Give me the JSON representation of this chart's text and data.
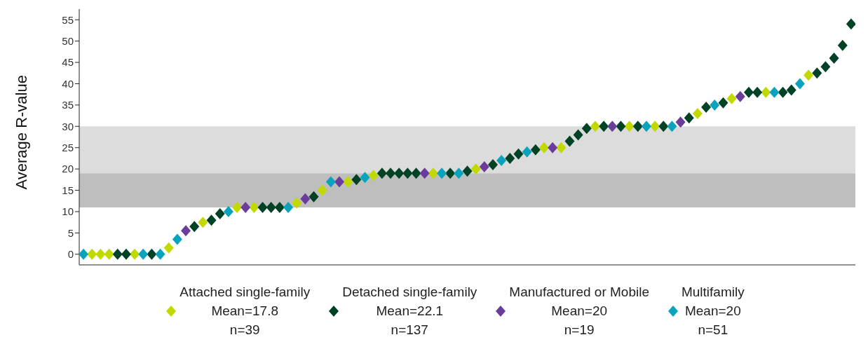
{
  "chart_data": {
    "type": "scatter",
    "ylabel": "Average R-value",
    "categories": [
      null,
      null,
      null,
      null,
      null,
      null,
      null,
      null,
      null,
      null,
      null,
      null,
      null,
      null,
      null,
      null,
      null,
      null,
      null,
      null,
      null,
      null,
      null,
      null,
      null,
      null,
      null,
      null,
      null,
      null,
      null,
      null,
      null,
      null,
      null,
      null,
      null,
      null,
      null,
      null,
      null,
      null,
      null,
      null,
      null,
      null,
      null,
      null,
      null,
      null,
      null,
      null,
      null,
      null,
      null,
      null,
      null,
      null,
      null,
      null,
      null,
      null,
      null,
      null,
      null,
      null,
      null,
      null,
      null,
      null,
      null,
      null,
      null,
      null,
      null,
      null,
      null,
      null,
      null,
      null,
      null,
      null,
      null,
      null,
      null,
      null,
      null,
      null,
      null,
      null,
      null
    ],
    "series": [
      {
        "name": "Attached single-family\nMean=17.8\nn=39",
        "color": "#c2d900",
        "values": [
          null,
          0,
          0,
          0,
          null,
          null,
          0,
          null,
          null,
          null,
          1.5,
          null,
          null,
          null,
          7.5,
          null,
          null,
          null,
          11,
          null,
          11,
          null,
          null,
          null,
          null,
          12,
          null,
          null,
          15,
          null,
          null,
          17,
          null,
          null,
          18.5,
          null,
          null,
          null,
          null,
          null,
          null,
          19,
          null,
          null,
          null,
          null,
          20,
          null,
          null,
          null,
          null,
          null,
          null,
          null,
          25,
          null,
          25,
          null,
          null,
          null,
          30,
          null,
          null,
          null,
          30,
          null,
          null,
          30,
          null,
          null,
          null,
          null,
          33,
          null,
          null,
          null,
          36.5,
          null,
          null,
          null,
          38,
          null,
          null,
          null,
          null,
          42,
          null,
          null,
          null,
          null,
          null
        ]
      },
      {
        "name": "Detached single-family\nMean=22.1\nn=137",
        "color": "#004225",
        "values": [
          null,
          null,
          null,
          null,
          0,
          0,
          null,
          null,
          0,
          null,
          null,
          null,
          null,
          6.5,
          null,
          8,
          9.5,
          null,
          null,
          null,
          null,
          11,
          11,
          11,
          null,
          null,
          null,
          13.5,
          null,
          null,
          null,
          null,
          17.5,
          null,
          null,
          19,
          19,
          19,
          19,
          19,
          null,
          null,
          null,
          19,
          null,
          19.5,
          null,
          null,
          21,
          null,
          22.5,
          23.5,
          null,
          24.5,
          null,
          null,
          null,
          26.5,
          28,
          29.5,
          null,
          30,
          null,
          30,
          null,
          30,
          null,
          null,
          30,
          null,
          null,
          32,
          null,
          34.5,
          null,
          35.5,
          null,
          null,
          38,
          38,
          null,
          null,
          38,
          38.5,
          null,
          null,
          42.5,
          44,
          46,
          49,
          54
        ]
      },
      {
        "name": "Manufactured or Mobile\nMean=20\nn=19",
        "color": "#6a3d9a",
        "values": [
          null,
          null,
          null,
          null,
          null,
          null,
          null,
          null,
          null,
          null,
          null,
          null,
          5.5,
          null,
          null,
          null,
          null,
          null,
          null,
          11,
          null,
          null,
          null,
          null,
          null,
          null,
          13,
          null,
          null,
          null,
          17,
          null,
          null,
          null,
          null,
          null,
          null,
          null,
          null,
          null,
          19,
          null,
          null,
          null,
          null,
          null,
          null,
          20.5,
          null,
          null,
          null,
          null,
          null,
          null,
          null,
          25,
          null,
          null,
          null,
          null,
          null,
          null,
          30,
          null,
          null,
          null,
          null,
          null,
          null,
          null,
          31,
          null,
          null,
          null,
          null,
          null,
          null,
          37,
          null,
          null,
          null,
          null,
          null,
          null,
          null,
          null,
          null,
          null,
          null,
          null,
          null
        ]
      },
      {
        "name": "Multifamily\nMean=20\nn=51",
        "color": "#0aa3be",
        "values": [
          0,
          null,
          null,
          null,
          null,
          null,
          null,
          0,
          null,
          0,
          null,
          3.5,
          null,
          null,
          null,
          null,
          null,
          10,
          null,
          null,
          null,
          null,
          null,
          null,
          11,
          null,
          null,
          null,
          null,
          17,
          null,
          null,
          null,
          18,
          null,
          null,
          null,
          null,
          null,
          null,
          null,
          null,
          19,
          null,
          19,
          null,
          null,
          null,
          null,
          22,
          null,
          null,
          24,
          null,
          null,
          null,
          null,
          null,
          null,
          null,
          null,
          null,
          null,
          null,
          null,
          null,
          30,
          null,
          null,
          30,
          null,
          null,
          null,
          null,
          35,
          null,
          null,
          null,
          null,
          null,
          null,
          38,
          null,
          null,
          40,
          null,
          null,
          null,
          null,
          null,
          null
        ]
      }
    ],
    "ylim": [
      -2.5,
      57.5
    ],
    "yticks": [
      0,
      5,
      10,
      15,
      20,
      25,
      30,
      35,
      40,
      45,
      50,
      55
    ],
    "bands": [
      {
        "axis": "y",
        "from": 19,
        "to": 30,
        "color": "#dcdcdc"
      },
      {
        "axis": "y",
        "from": 11,
        "to": 19,
        "color": "#bebebe"
      }
    ],
    "grid": false,
    "legend": "bottom",
    "marker": "diamond",
    "tick_labels": "y"
  }
}
